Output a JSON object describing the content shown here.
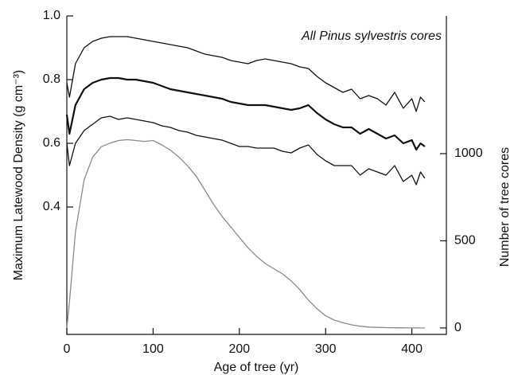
{
  "chart_data": {
    "type": "line",
    "annotation": "All Pinus sylvestris cores",
    "xlabel": "Age of tree (yr)",
    "ylabel": "Maximum Latewood Density  (g cm⁻³)",
    "y2label": "Number of tree cores",
    "x": [
      0,
      3,
      10,
      20,
      30,
      40,
      50,
      60,
      70,
      80,
      90,
      100,
      110,
      120,
      130,
      140,
      150,
      160,
      170,
      180,
      190,
      200,
      210,
      220,
      230,
      240,
      250,
      260,
      270,
      280,
      290,
      300,
      310,
      320,
      330,
      340,
      350,
      360,
      370,
      380,
      390,
      400,
      405,
      410,
      415
    ],
    "series": [
      {
        "color": "#111111",
        "values": [
          0.79,
          0.745,
          0.85,
          0.9,
          0.92,
          0.93,
          0.935,
          0.935,
          0.935,
          0.93,
          0.925,
          0.92,
          0.915,
          0.91,
          0.905,
          0.9,
          0.89,
          0.88,
          0.875,
          0.87,
          0.86,
          0.855,
          0.85,
          0.86,
          0.865,
          0.86,
          0.855,
          0.85,
          0.84,
          0.835,
          0.81,
          0.79,
          0.775,
          0.76,
          0.77,
          0.74,
          0.75,
          0.74,
          0.72,
          0.76,
          0.71,
          0.74,
          0.7,
          0.745,
          0.73
        ]
      },
      {
        "color": "#111111",
        "values": [
          0.69,
          0.63,
          0.72,
          0.77,
          0.79,
          0.8,
          0.805,
          0.805,
          0.8,
          0.8,
          0.795,
          0.79,
          0.78,
          0.77,
          0.765,
          0.76,
          0.755,
          0.75,
          0.745,
          0.74,
          0.73,
          0.725,
          0.72,
          0.72,
          0.72,
          0.715,
          0.71,
          0.705,
          0.71,
          0.72,
          0.695,
          0.675,
          0.66,
          0.65,
          0.65,
          0.63,
          0.645,
          0.63,
          0.615,
          0.625,
          0.6,
          0.61,
          0.58,
          0.6,
          0.59
        ]
      },
      {
        "color": "#111111",
        "values": [
          0.6,
          0.53,
          0.6,
          0.64,
          0.66,
          0.68,
          0.685,
          0.675,
          0.68,
          0.675,
          0.67,
          0.665,
          0.655,
          0.65,
          0.64,
          0.635,
          0.625,
          0.62,
          0.615,
          0.61,
          0.6,
          0.59,
          0.59,
          0.585,
          0.585,
          0.585,
          0.575,
          0.57,
          0.585,
          0.595,
          0.565,
          0.545,
          0.53,
          0.53,
          0.53,
          0.5,
          0.52,
          0.51,
          0.5,
          0.53,
          0.48,
          0.5,
          0.47,
          0.51,
          0.49
        ]
      },
      {
        "color": "#8a8a8a",
        "axis": "y2",
        "values": [
          0,
          150,
          550,
          850,
          980,
          1040,
          1060,
          1075,
          1080,
          1075,
          1070,
          1075,
          1050,
          1020,
          980,
          930,
          870,
          790,
          710,
          640,
          580,
          520,
          460,
          410,
          370,
          340,
          310,
          270,
          220,
          160,
          110,
          70,
          45,
          30,
          18,
          10,
          5,
          3,
          2,
          1,
          1,
          0,
          0,
          0,
          0
        ]
      }
    ],
    "xlim": [
      0,
      440
    ],
    "xticks": [
      0,
      100,
      200,
      300,
      400
    ],
    "ylim": [
      0,
      1
    ],
    "yticks": [
      0.4,
      0.6,
      0.8,
      {
        "value": 1,
        "label": "1.0"
      }
    ],
    "y2lim": [
      -37,
      1790
    ],
    "y2ticks": [
      0,
      500,
      1000
    ]
  }
}
